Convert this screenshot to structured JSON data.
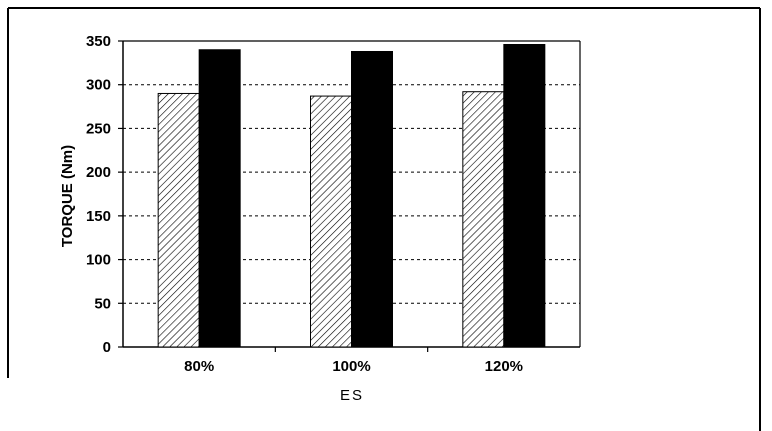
{
  "chart_data": {
    "type": "bar",
    "categories": [
      "80%",
      "100%",
      "120%"
    ],
    "series": [
      {
        "values": [
          290,
          287,
          292
        ],
        "pattern": "diagonal-hatch",
        "color": "#ffffff"
      },
      {
        "values": [
          340,
          338,
          346
        ],
        "pattern": "solid-dark",
        "color": "#000000"
      }
    ],
    "title": "",
    "xlabel": "ES",
    "ylabel": "TORQUE  (Nm)",
    "ylim": [
      0,
      350
    ],
    "yticks": [
      0,
      50,
      100,
      150,
      200,
      250,
      300,
      350
    ],
    "grid": "horizontal-dashed",
    "legend": "none"
  }
}
